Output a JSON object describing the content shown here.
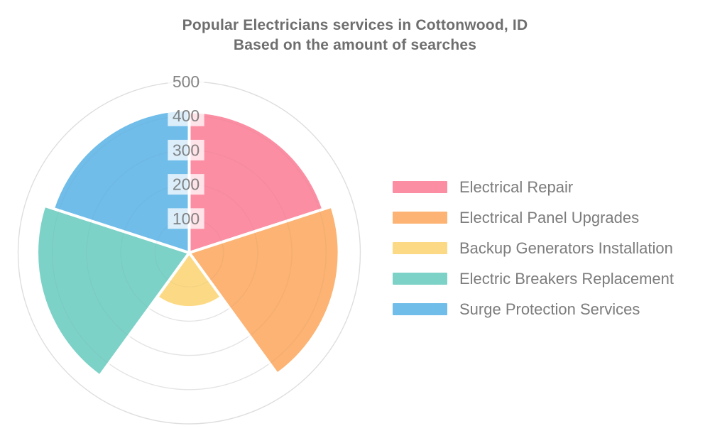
{
  "header": {
    "title": "Popular Electricians services in Cottonwood, ID",
    "subtitle": "Based on the amount of searches"
  },
  "chart_data": {
    "type": "pie",
    "variant": "polar-area-rose",
    "title": "Popular Electricians services in Cottonwood, ID",
    "subtitle": "Based on the amount of searches",
    "categories": [
      "Electrical Repair",
      "Electrical Panel Upgrades",
      "Backup Generators Installation",
      "Electric Breakers Replacement",
      "Surge Protection Services"
    ],
    "values": [
      412,
      438,
      160,
      445,
      418
    ],
    "colors": [
      "#FC8EA3",
      "#FCB373",
      "#FCDA85",
      "#7DD2C8",
      "#70BDEA"
    ],
    "radial_axis": {
      "ticks": [
        100,
        200,
        300,
        400,
        500
      ],
      "range": [
        0,
        500
      ],
      "tick_labels": [
        "100",
        "200",
        "300",
        "400",
        "500"
      ],
      "tick_color": "#666666",
      "tick_backdrop": "rgba(255,255,255,0.75)"
    },
    "angle_start": "top",
    "direction": "clockwise",
    "grid": true,
    "grid_color": "rgba(0,0,0,0.08)",
    "sector_border_color": "#ffffff",
    "legend_position": "right",
    "text_color": "#6e6e6e",
    "legend_text_color": "#7c7c7c"
  }
}
